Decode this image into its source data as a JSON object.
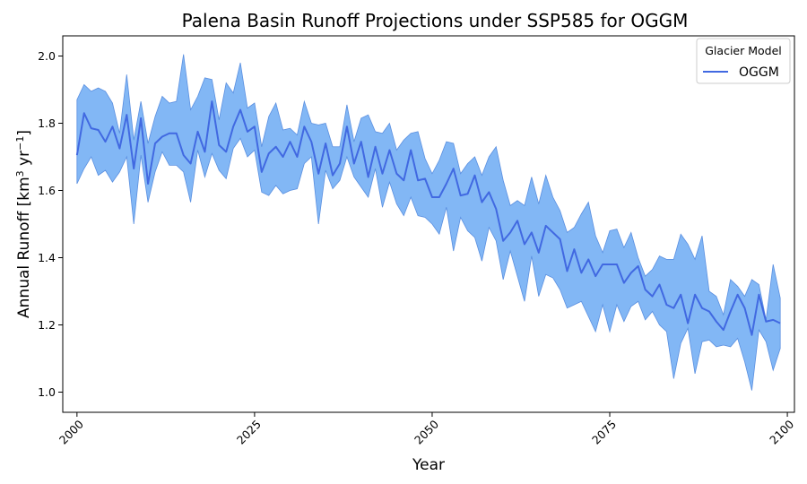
{
  "chart_data": {
    "type": "line",
    "title": "Palena Basin Runoff Projections under SSP585 for OGGM",
    "xlabel": "Year",
    "ylabel_parts": [
      "Annual Runoff [km",
      "3",
      " yr",
      "−1",
      "]"
    ],
    "xlim": [
      1998,
      2101
    ],
    "ylim": [
      0.94,
      2.06
    ],
    "xticks": [
      2000,
      2025,
      2050,
      2075,
      2100
    ],
    "yticks": [
      1.0,
      1.2,
      1.4,
      1.6,
      1.8,
      2.0
    ],
    "ytick_labels": [
      "1.0",
      "1.2",
      "1.4",
      "1.6",
      "1.8",
      "2.0"
    ],
    "grid": false,
    "legend": {
      "title": "Glacier Model",
      "position": "top-right"
    },
    "series": [
      {
        "name": "OGGM",
        "line_color": "#4169E1",
        "band_color": "#82B7F5",
        "band_edge_color": "#5A8FE0",
        "x_start": 2000,
        "x_step": 1,
        "mean": [
          1.705,
          1.83,
          1.785,
          1.78,
          1.745,
          1.79,
          1.725,
          1.825,
          1.665,
          1.815,
          1.62,
          1.74,
          1.76,
          1.77,
          1.77,
          1.705,
          1.68,
          1.775,
          1.715,
          1.865,
          1.735,
          1.715,
          1.79,
          1.84,
          1.775,
          1.79,
          1.655,
          1.71,
          1.73,
          1.7,
          1.745,
          1.7,
          1.79,
          1.745,
          1.65,
          1.74,
          1.645,
          1.68,
          1.79,
          1.68,
          1.745,
          1.64,
          1.73,
          1.65,
          1.72,
          1.65,
          1.63,
          1.72,
          1.63,
          1.635,
          1.58,
          1.58,
          1.62,
          1.665,
          1.585,
          1.59,
          1.645,
          1.565,
          1.595,
          1.545,
          1.45,
          1.475,
          1.51,
          1.44,
          1.475,
          1.415,
          1.495,
          1.475,
          1.455,
          1.36,
          1.425,
          1.355,
          1.395,
          1.345,
          1.38,
          1.38,
          1.38,
          1.325,
          1.355,
          1.375,
          1.305,
          1.285,
          1.32,
          1.26,
          1.25,
          1.29,
          1.205,
          1.29,
          1.25,
          1.24,
          1.21,
          1.185,
          1.24,
          1.29,
          1.25,
          1.17,
          1.29,
          1.21,
          1.215,
          1.205
        ],
        "upper": [
          1.87,
          1.915,
          1.895,
          1.905,
          1.895,
          1.86,
          1.77,
          1.945,
          1.75,
          1.865,
          1.74,
          1.82,
          1.88,
          1.86,
          1.865,
          2.005,
          1.84,
          1.88,
          1.935,
          1.93,
          1.81,
          1.92,
          1.89,
          1.98,
          1.845,
          1.86,
          1.73,
          1.82,
          1.86,
          1.78,
          1.785,
          1.765,
          1.865,
          1.8,
          1.795,
          1.8,
          1.73,
          1.73,
          1.855,
          1.745,
          1.815,
          1.825,
          1.775,
          1.77,
          1.8,
          1.72,
          1.75,
          1.77,
          1.775,
          1.695,
          1.65,
          1.69,
          1.745,
          1.74,
          1.65,
          1.68,
          1.7,
          1.645,
          1.7,
          1.73,
          1.63,
          1.555,
          1.57,
          1.555,
          1.64,
          1.56,
          1.645,
          1.58,
          1.54,
          1.475,
          1.49,
          1.53,
          1.565,
          1.465,
          1.415,
          1.48,
          1.485,
          1.43,
          1.475,
          1.4,
          1.345,
          1.365,
          1.405,
          1.395,
          1.395,
          1.47,
          1.44,
          1.395,
          1.465,
          1.3,
          1.285,
          1.23,
          1.335,
          1.315,
          1.285,
          1.335,
          1.32,
          1.215,
          1.38,
          1.28
        ],
        "lower": [
          1.62,
          1.665,
          1.7,
          1.645,
          1.66,
          1.625,
          1.655,
          1.7,
          1.5,
          1.705,
          1.565,
          1.655,
          1.715,
          1.675,
          1.675,
          1.655,
          1.565,
          1.72,
          1.64,
          1.71,
          1.66,
          1.635,
          1.725,
          1.755,
          1.7,
          1.72,
          1.595,
          1.585,
          1.615,
          1.59,
          1.6,
          1.605,
          1.68,
          1.7,
          1.5,
          1.66,
          1.605,
          1.63,
          1.7,
          1.64,
          1.61,
          1.58,
          1.665,
          1.55,
          1.625,
          1.56,
          1.525,
          1.58,
          1.525,
          1.52,
          1.5,
          1.47,
          1.55,
          1.42,
          1.52,
          1.48,
          1.46,
          1.39,
          1.49,
          1.45,
          1.335,
          1.42,
          1.345,
          1.27,
          1.405,
          1.285,
          1.35,
          1.34,
          1.305,
          1.25,
          1.26,
          1.27,
          1.225,
          1.18,
          1.26,
          1.18,
          1.26,
          1.21,
          1.255,
          1.27,
          1.215,
          1.24,
          1.2,
          1.18,
          1.04,
          1.145,
          1.19,
          1.055,
          1.15,
          1.155,
          1.135,
          1.14,
          1.135,
          1.16,
          1.09,
          1.005,
          1.185,
          1.15,
          1.065,
          1.13
        ]
      }
    ]
  }
}
